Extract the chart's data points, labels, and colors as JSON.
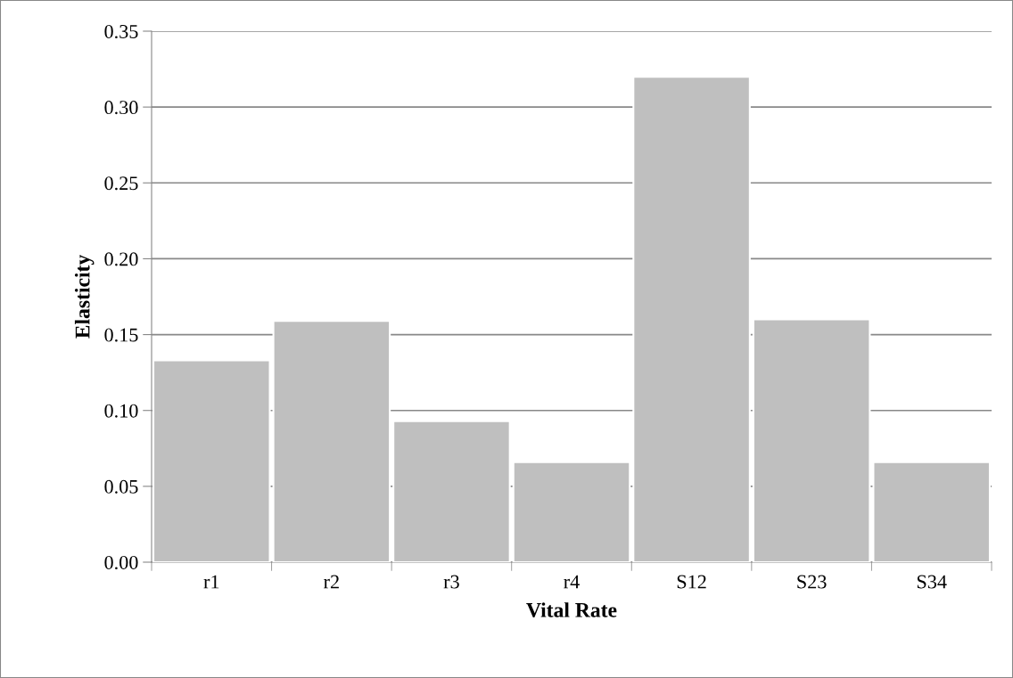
{
  "chart_data": {
    "type": "bar",
    "xlabel": "Vital Rate",
    "ylabel": "Elasticity",
    "categories": [
      "r1",
      "r2",
      "r3",
      "r4",
      "S12",
      "S23",
      "S34"
    ],
    "values": [
      0.133,
      0.159,
      0.093,
      0.066,
      0.32,
      0.16,
      0.066
    ],
    "color": "#bfbfbf",
    "ylim": [
      0,
      0.35
    ],
    "yticks": [
      {
        "value": 0,
        "label": "0.00"
      },
      {
        "value": 0.05,
        "label": "0.05"
      },
      {
        "value": 0.1,
        "label": "0.10"
      },
      {
        "value": 0.15,
        "label": "0.15"
      },
      {
        "value": 0.2,
        "label": "0.20"
      },
      {
        "value": 0.25,
        "label": "0.25"
      },
      {
        "value": 0.3,
        "label": "0.30"
      },
      {
        "value": 0.35,
        "label": "0.35"
      }
    ],
    "grid": "y",
    "legend": false
  }
}
